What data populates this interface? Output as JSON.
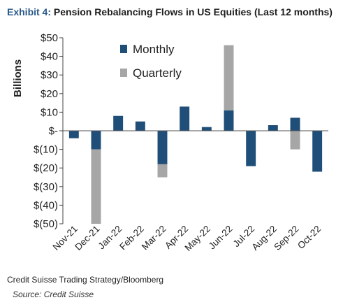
{
  "header": {
    "title_prefix": "Exhibit 4:",
    "title_main": "Pension Rebalancing Flows in US Equities (Last 12 months)"
  },
  "footer": {
    "source_line": "Credit Suisse Trading Strategy/Bloomberg",
    "source_note": "Source: Credit Suisse"
  },
  "chart_data": {
    "type": "bar",
    "stacked": true,
    "ylabel": "Billions",
    "xlabel": "",
    "ylim": [
      -50,
      50
    ],
    "yticks": [
      50,
      40,
      30,
      20,
      10,
      0,
      -10,
      -20,
      -30,
      -40,
      -50
    ],
    "ytick_labels": [
      "$50",
      "$40",
      "$30",
      "$20",
      "$10",
      "$-",
      "$(10)",
      "$(20)",
      "$(30)",
      "$(40)",
      "$(50)"
    ],
    "categories": [
      "Nov-21",
      "Dec-21",
      "Jan-22",
      "Feb-22",
      "Mar-22",
      "Apr-22",
      "May-22",
      "Jun-22",
      "Jul-22",
      "Aug-22",
      "Sep-22",
      "Oct-22"
    ],
    "series": [
      {
        "name": "Monthly",
        "color": "#1f4e79",
        "values": [
          -4,
          -10,
          8,
          5,
          -18,
          13,
          2,
          11,
          -19,
          3,
          7,
          -22
        ]
      },
      {
        "name": "Quarterly",
        "color": "#a6a6a6",
        "values": [
          0,
          -40,
          0,
          0,
          -7,
          0,
          0,
          35,
          0,
          0,
          -10,
          0
        ]
      }
    ],
    "legend_position": "top-center",
    "grid": false
  }
}
